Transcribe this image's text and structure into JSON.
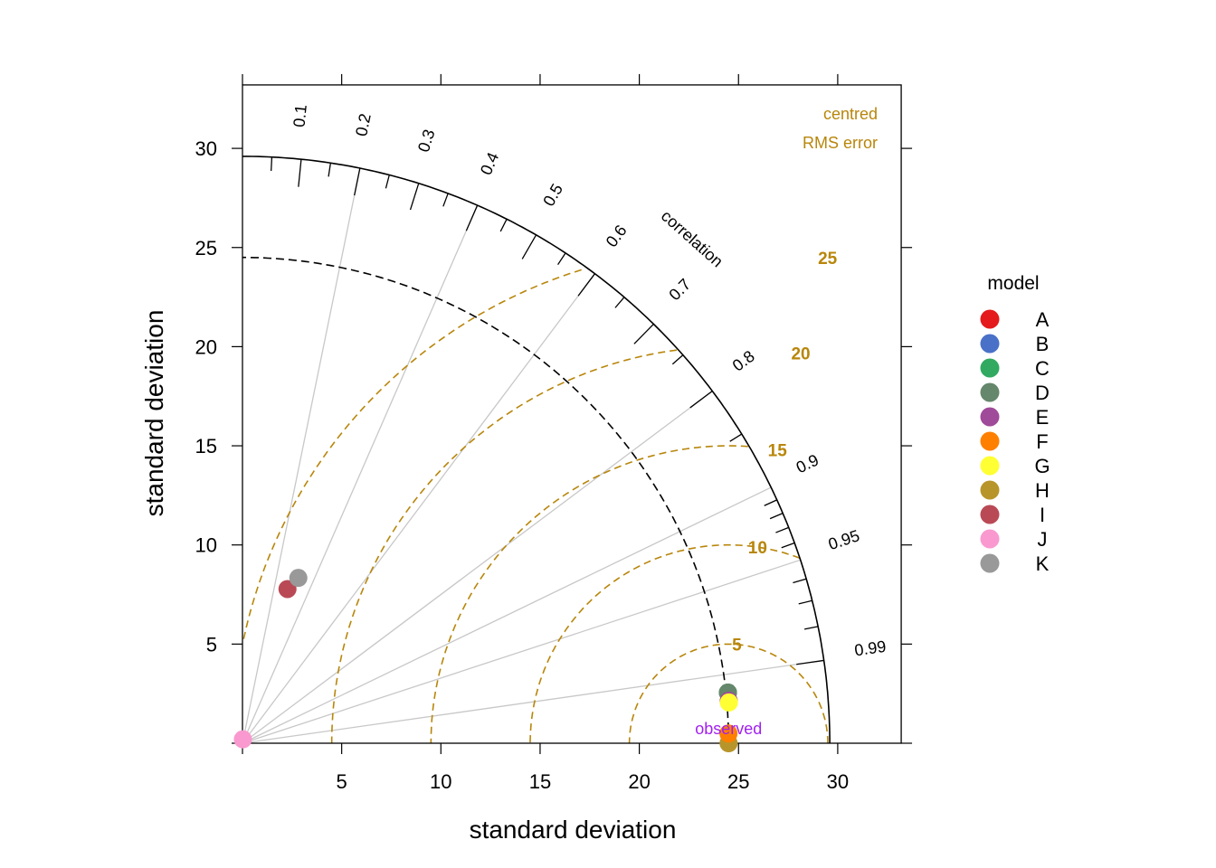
{
  "chart_data": {
    "type": "scatter",
    "subtype": "taylor-diagram",
    "xlabel": "standard deviation",
    "ylabel": "standard deviation",
    "xlim": [
      0,
      33.2
    ],
    "ylim": [
      0,
      33.2
    ],
    "x_ticks": [
      "5",
      "10",
      "15",
      "20",
      "25",
      "30"
    ],
    "y_ticks": [
      "5",
      "10",
      "15",
      "20",
      "25",
      "30"
    ],
    "max_sd_arc": 29.6,
    "observed_sd": 24.5,
    "observed_label": "observed",
    "correlation_label": "correlation",
    "correlation_major": [
      "0.1",
      "0.2",
      "0.3",
      "0.4",
      "0.5",
      "0.6",
      "0.7",
      "0.8",
      "0.9",
      "0.95",
      "0.99"
    ],
    "correlation_lines": [
      0.2,
      0.4,
      0.6,
      0.8,
      0.9,
      0.95,
      0.99
    ],
    "rms_title": [
      "centred",
      "RMS error"
    ],
    "rms_contours": [
      "5",
      "10",
      "15",
      "20",
      "25"
    ],
    "rms_values": [
      5,
      10,
      15,
      20,
      25
    ],
    "legend": {
      "title": "model",
      "position": "right",
      "entries": [
        {
          "name": "A",
          "color": "#e41a1c"
        },
        {
          "name": "B",
          "color": "#4a71c8"
        },
        {
          "name": "C",
          "color": "#31a960"
        },
        {
          "name": "D",
          "color": "#65876b"
        },
        {
          "name": "E",
          "color": "#a04a9a"
        },
        {
          "name": "F",
          "color": "#ff7f00"
        },
        {
          "name": "G",
          "color": "#ffff33"
        },
        {
          "name": "H",
          "color": "#b8952a"
        },
        {
          "name": "I",
          "color": "#b94a55"
        },
        {
          "name": "J",
          "color": "#f999cf"
        },
        {
          "name": "K",
          "color": "#999999"
        }
      ]
    },
    "points": [
      {
        "model": "A",
        "sd": 24.6,
        "cor": 0.9946
      },
      {
        "model": "B",
        "sd": 24.6,
        "cor": 0.9946
      },
      {
        "model": "C",
        "sd": 24.6,
        "cor": 0.9946
      },
      {
        "model": "D",
        "sd": 24.6,
        "cor": 0.9946
      },
      {
        "model": "E",
        "sd": 24.6,
        "cor": 0.9962
      },
      {
        "model": "H",
        "sd": 24.5,
        "cor": 1.0
      },
      {
        "model": "F",
        "sd": 24.5,
        "cor": 0.9998
      },
      {
        "model": "G",
        "sd": 24.6,
        "cor": 0.9965
      },
      {
        "model": "I",
        "sd": 8.1,
        "cor": 0.28
      },
      {
        "model": "K",
        "sd": 8.8,
        "cor": 0.32
      },
      {
        "model": "J",
        "sd": 0.2,
        "cor": 0.1
      }
    ]
  }
}
